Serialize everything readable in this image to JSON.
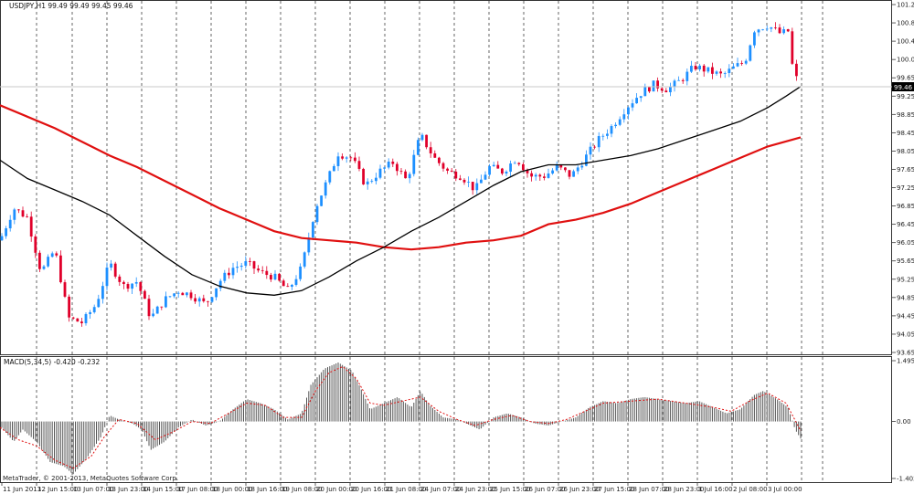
{
  "header": {
    "symbol_info": "USDJPY,H1  99.49 99.49 99.45 99.46"
  },
  "macd_header": "MACD(5,34,5) -0.420 -0.232",
  "copyright": "MetaTrader, © 2001-2013, MetaQuotes Software Corp.",
  "colors": {
    "bull": "#1e90ff",
    "bear": "#e0002a",
    "ma_fast": "#000000",
    "ma_slow": "#e01010",
    "histogram": "#555555",
    "signal": "#e01010",
    "grid": "#000000"
  },
  "chart_data": [
    {
      "type": "candlestick",
      "price_ticks": [
        "101.25",
        "100.85",
        "100.45",
        "100.05",
        "99.65",
        "99.25",
        "98.85",
        "98.45",
        "98.05",
        "97.65",
        "97.25",
        "96.85",
        "96.45",
        "96.05",
        "95.65",
        "95.25",
        "94.85",
        "94.45",
        "94.05",
        "93.65"
      ],
      "current_price": "99.46",
      "ylim": [
        93.65,
        101.25
      ],
      "x_labels": [
        "11 Jun 2013",
        "12 Jun 15:00",
        "13 Jun 07:00",
        "13 Jun 23:00",
        "14 Jun 15:00",
        "17 Jun 08:00",
        "18 Jun 00:00",
        "18 Jun 16:00",
        "19 Jun 08:00",
        "20 Jun 00:00",
        "20 Jun 16:00",
        "21 Jun 08:00",
        "24 Jun 07:00",
        "24 Jun 23:00",
        "25 Jun 15:00",
        "26 Jun 07:00",
        "26 Jun 23:00",
        "27 Jun 15:00",
        "28 Jun 07:00",
        "28 Jun 23:00",
        "1 Jul 16:00",
        "2 Jul 08:00",
        "3 Jul 00:00"
      ],
      "close_path": [
        [
          0,
          96.1
        ],
        [
          15,
          96.8
        ],
        [
          30,
          96.6
        ],
        [
          45,
          95.4
        ],
        [
          60,
          95.9
        ],
        [
          75,
          94.4
        ],
        [
          90,
          94.3
        ],
        [
          105,
          94.7
        ],
        [
          120,
          95.6
        ],
        [
          135,
          95.1
        ],
        [
          150,
          95.2
        ],
        [
          165,
          94.4
        ],
        [
          180,
          94.8
        ],
        [
          195,
          95.0
        ],
        [
          210,
          94.9
        ],
        [
          225,
          94.7
        ],
        [
          240,
          95.2
        ],
        [
          255,
          95.5
        ],
        [
          270,
          95.6
        ],
        [
          285,
          95.4
        ],
        [
          300,
          95.3
        ],
        [
          315,
          95.0
        ],
        [
          330,
          95.5
        ],
        [
          345,
          96.8
        ],
        [
          360,
          97.5
        ],
        [
          370,
          98.0
        ],
        [
          385,
          97.9
        ],
        [
          400,
          97.3
        ],
        [
          415,
          97.6
        ],
        [
          430,
          97.8
        ],
        [
          445,
          97.4
        ],
        [
          460,
          98.4
        ],
        [
          475,
          97.9
        ],
        [
          490,
          97.6
        ],
        [
          505,
          97.5
        ],
        [
          520,
          97.2
        ],
        [
          535,
          97.7
        ],
        [
          550,
          97.6
        ],
        [
          565,
          97.9
        ],
        [
          580,
          97.5
        ],
        [
          595,
          97.5
        ],
        [
          610,
          97.7
        ],
        [
          625,
          97.5
        ],
        [
          640,
          97.9
        ],
        [
          655,
          98.3
        ],
        [
          670,
          98.6
        ],
        [
          685,
          99.0
        ],
        [
          700,
          99.3
        ],
        [
          715,
          99.5
        ],
        [
          730,
          99.4
        ],
        [
          745,
          99.6
        ],
        [
          760,
          99.9
        ],
        [
          775,
          99.8
        ],
        [
          790,
          99.7
        ],
        [
          805,
          99.9
        ],
        [
          815,
          100.0
        ],
        [
          825,
          100.7
        ],
        [
          840,
          100.8
        ],
        [
          855,
          100.6
        ],
        [
          862,
          100.7
        ],
        [
          867,
          99.9
        ],
        [
          872,
          99.6
        ],
        [
          876,
          99.46
        ]
      ],
      "ma_fast_path": [
        [
          0,
          97.85
        ],
        [
          30,
          97.45
        ],
        [
          60,
          97.2
        ],
        [
          90,
          96.95
        ],
        [
          120,
          96.65
        ],
        [
          150,
          96.2
        ],
        [
          180,
          95.75
        ],
        [
          210,
          95.35
        ],
        [
          240,
          95.1
        ],
        [
          270,
          94.95
        ],
        [
          300,
          94.9
        ],
        [
          330,
          95.0
        ],
        [
          360,
          95.3
        ],
        [
          390,
          95.65
        ],
        [
          420,
          95.95
        ],
        [
          450,
          96.3
        ],
        [
          480,
          96.6
        ],
        [
          510,
          96.95
        ],
        [
          540,
          97.3
        ],
        [
          570,
          97.6
        ],
        [
          600,
          97.75
        ],
        [
          630,
          97.75
        ],
        [
          660,
          97.85
        ],
        [
          690,
          97.95
        ],
        [
          720,
          98.1
        ],
        [
          750,
          98.3
        ],
        [
          780,
          98.5
        ],
        [
          810,
          98.7
        ],
        [
          840,
          99.0
        ],
        [
          860,
          99.25
        ],
        [
          876,
          99.46
        ]
      ],
      "ma_slow_path": [
        [
          0,
          99.05
        ],
        [
          30,
          98.8
        ],
        [
          60,
          98.55
        ],
        [
          90,
          98.25
        ],
        [
          120,
          97.95
        ],
        [
          150,
          97.7
        ],
        [
          180,
          97.4
        ],
        [
          210,
          97.1
        ],
        [
          240,
          96.8
        ],
        [
          270,
          96.55
        ],
        [
          300,
          96.3
        ],
        [
          330,
          96.15
        ],
        [
          360,
          96.1
        ],
        [
          390,
          96.05
        ],
        [
          420,
          95.95
        ],
        [
          450,
          95.9
        ],
        [
          480,
          95.95
        ],
        [
          510,
          96.05
        ],
        [
          540,
          96.1
        ],
        [
          570,
          96.2
        ],
        [
          600,
          96.45
        ],
        [
          630,
          96.55
        ],
        [
          660,
          96.7
        ],
        [
          690,
          96.9
        ],
        [
          720,
          97.15
        ],
        [
          750,
          97.4
        ],
        [
          780,
          97.65
        ],
        [
          810,
          97.9
        ],
        [
          840,
          98.15
        ],
        [
          876,
          98.35
        ]
      ]
    },
    {
      "type": "bar",
      "title": "MACD(5,34,5) -0.420 -0.232",
      "ticks": [
        "1.495",
        "0.00",
        "-1.402"
      ],
      "ylim": [
        -1.402,
        1.495
      ],
      "histogram_path": [
        [
          0,
          -0.1
        ],
        [
          15,
          -0.5
        ],
        [
          25,
          -0.2
        ],
        [
          40,
          -0.5
        ],
        [
          55,
          -1.0
        ],
        [
          70,
          -1.1
        ],
        [
          80,
          -1.3
        ],
        [
          95,
          -0.9
        ],
        [
          110,
          -0.4
        ],
        [
          120,
          0.15
        ],
        [
          130,
          0.05
        ],
        [
          145,
          -0.05
        ],
        [
          155,
          -0.2
        ],
        [
          165,
          -0.7
        ],
        [
          180,
          -0.5
        ],
        [
          195,
          -0.15
        ],
        [
          210,
          0.05
        ],
        [
          225,
          -0.1
        ],
        [
          240,
          0.0
        ],
        [
          255,
          0.3
        ],
        [
          270,
          0.55
        ],
        [
          285,
          0.45
        ],
        [
          300,
          0.3
        ],
        [
          315,
          0.05
        ],
        [
          330,
          0.2
        ],
        [
          340,
          0.9
        ],
        [
          355,
          1.3
        ],
        [
          370,
          1.45
        ],
        [
          385,
          1.25
        ],
        [
          395,
          0.8
        ],
        [
          405,
          0.3
        ],
        [
          420,
          0.45
        ],
        [
          435,
          0.6
        ],
        [
          450,
          0.35
        ],
        [
          460,
          0.75
        ],
        [
          470,
          0.4
        ],
        [
          485,
          0.1
        ],
        [
          500,
          0.05
        ],
        [
          515,
          -0.1
        ],
        [
          525,
          -0.2
        ],
        [
          540,
          0.1
        ],
        [
          555,
          0.2
        ],
        [
          570,
          0.1
        ],
        [
          585,
          -0.05
        ],
        [
          600,
          -0.1
        ],
        [
          615,
          0.0
        ],
        [
          630,
          0.1
        ],
        [
          645,
          0.35
        ],
        [
          660,
          0.5
        ],
        [
          675,
          0.45
        ],
        [
          690,
          0.55
        ],
        [
          705,
          0.6
        ],
        [
          720,
          0.55
        ],
        [
          735,
          0.5
        ],
        [
          750,
          0.45
        ],
        [
          765,
          0.5
        ],
        [
          780,
          0.35
        ],
        [
          795,
          0.2
        ],
        [
          810,
          0.3
        ],
        [
          825,
          0.65
        ],
        [
          835,
          0.75
        ],
        [
          850,
          0.55
        ],
        [
          862,
          0.35
        ],
        [
          870,
          -0.2
        ],
        [
          876,
          -0.42
        ]
      ],
      "signal_path": [
        [
          0,
          -0.15
        ],
        [
          20,
          -0.45
        ],
        [
          40,
          -0.6
        ],
        [
          60,
          -0.95
        ],
        [
          80,
          -1.15
        ],
        [
          100,
          -0.85
        ],
        [
          115,
          -0.35
        ],
        [
          130,
          0.05
        ],
        [
          150,
          -0.05
        ],
        [
          170,
          -0.45
        ],
        [
          190,
          -0.25
        ],
        [
          210,
          0.0
        ],
        [
          230,
          -0.05
        ],
        [
          250,
          0.2
        ],
        [
          270,
          0.45
        ],
        [
          290,
          0.4
        ],
        [
          310,
          0.1
        ],
        [
          330,
          0.1
        ],
        [
          345,
          0.75
        ],
        [
          360,
          1.2
        ],
        [
          375,
          1.35
        ],
        [
          390,
          1.05
        ],
        [
          405,
          0.45
        ],
        [
          420,
          0.4
        ],
        [
          440,
          0.5
        ],
        [
          460,
          0.6
        ],
        [
          480,
          0.25
        ],
        [
          500,
          0.05
        ],
        [
          520,
          -0.1
        ],
        [
          540,
          0.05
        ],
        [
          560,
          0.15
        ],
        [
          580,
          0.0
        ],
        [
          600,
          -0.05
        ],
        [
          620,
          0.05
        ],
        [
          640,
          0.25
        ],
        [
          660,
          0.45
        ],
        [
          690,
          0.5
        ],
        [
          720,
          0.55
        ],
        [
          750,
          0.45
        ],
        [
          780,
          0.35
        ],
        [
          800,
          0.25
        ],
        [
          820,
          0.5
        ],
        [
          840,
          0.7
        ],
        [
          860,
          0.45
        ],
        [
          876,
          -0.23
        ]
      ]
    }
  ]
}
